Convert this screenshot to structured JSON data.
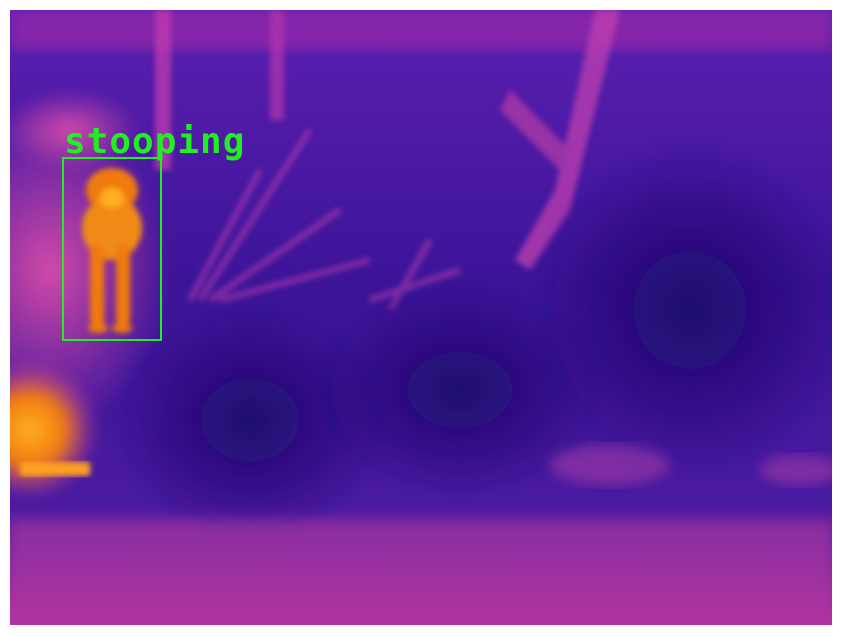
{
  "detection": {
    "label": "stooping",
    "color": "#22ee22"
  },
  "palette": {
    "cold": "#2a0f8a",
    "cool": "#5a1aa8",
    "warm": "#c23aa8",
    "hot": "#f07a10",
    "hottest": "#ffb020"
  }
}
